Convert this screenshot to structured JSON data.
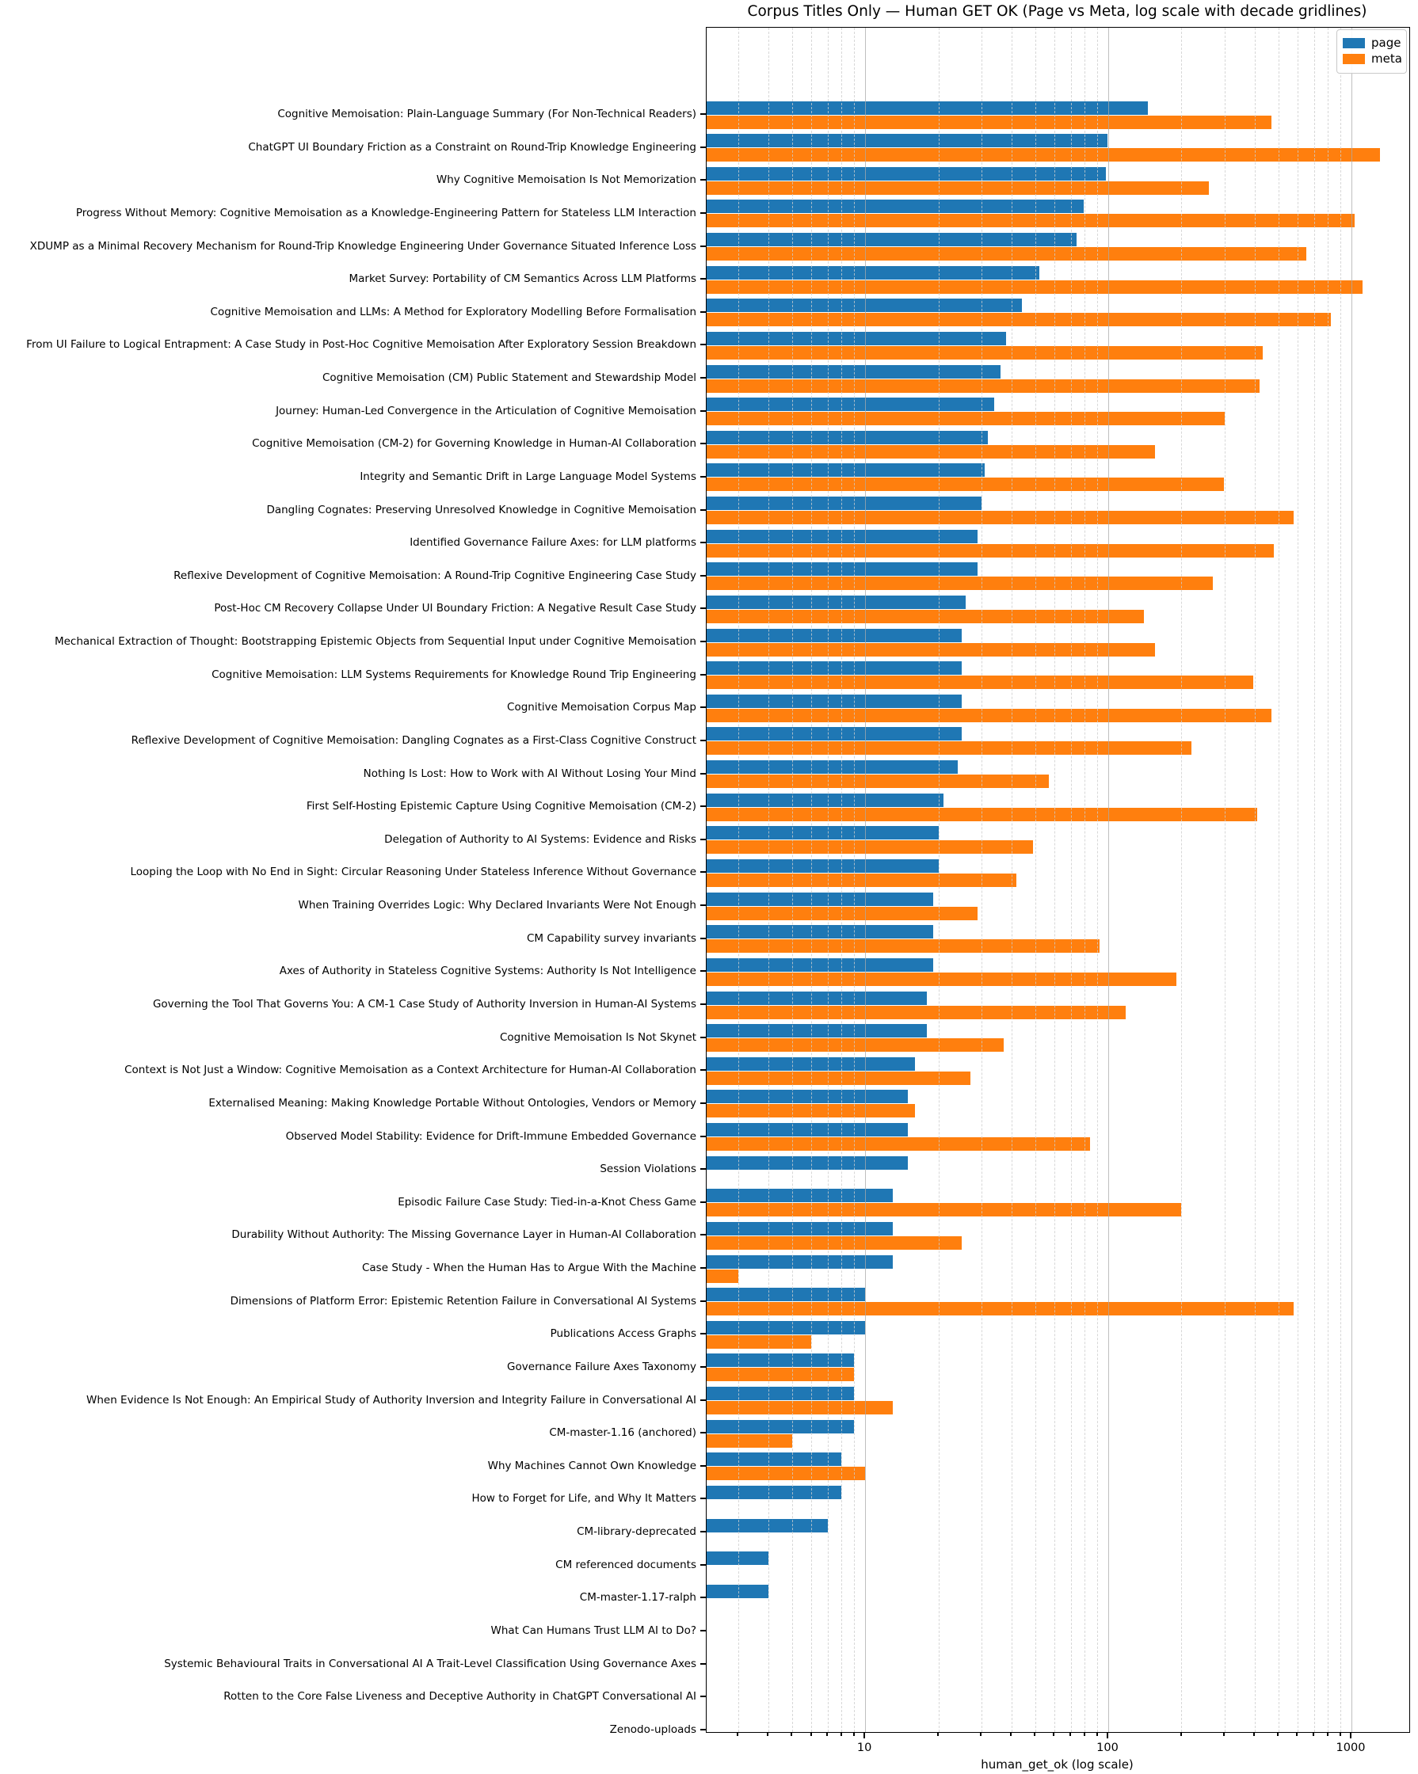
{
  "figure": {
    "title": "Corpus Titles Only — Human GET OK (Page vs Meta, log scale with decade gridlines)",
    "xlabel": "human_get_ok (log scale)"
  },
  "legend": {
    "position": "upper right",
    "entries": [
      {
        "label": "page",
        "color": "#1f77b4"
      },
      {
        "label": "meta",
        "color": "#ff7f0e"
      }
    ]
  },
  "chart_data": {
    "type": "bar",
    "orientation": "horizontal",
    "x_scale": "log",
    "title": "Corpus Titles Only — Human GET OK (Page vs Meta, log scale with decade gridlines)",
    "xlabel": "human_get_ok (log scale)",
    "ylabel": "",
    "xlim": [
      2.23,
      1729
    ],
    "grid": "decade major solid, minor dashed",
    "legend_position": "upper right",
    "xticks": [
      {
        "value": 10,
        "label": "10"
      },
      {
        "value": 100,
        "label": "100"
      },
      {
        "value": 1000,
        "label": "1000"
      }
    ],
    "x_minor_gridlines": [
      3,
      4,
      5,
      6,
      7,
      8,
      9,
      20,
      30,
      40,
      50,
      60,
      70,
      80,
      90,
      200,
      300,
      400,
      500,
      600,
      700,
      800,
      900
    ],
    "categories": [
      "Cognitive Memoisation: Plain-Language Summary (For Non-Technical Readers)",
      "ChatGPT UI Boundary Friction as a Constraint on Round-Trip Knowledge Engineering",
      "Why Cognitive Memoisation Is Not Memorization",
      "Progress Without Memory: Cognitive Memoisation as a Knowledge-Engineering Pattern for Stateless LLM Interaction",
      "XDUMP as a Minimal Recovery Mechanism for Round-Trip Knowledge Engineering Under Governance Situated Inference Loss",
      "Market Survey: Portability of CM Semantics Across LLM Platforms",
      "Cognitive Memoisation and LLMs: A Method for Exploratory Modelling Before Formalisation",
      "From UI Failure to Logical Entrapment: A Case Study in Post-Hoc Cognitive Memoisation After Exploratory Session Breakdown",
      "Cognitive Memoisation (CM) Public Statement and Stewardship Model",
      "Journey: Human-Led Convergence in the Articulation of Cognitive Memoisation",
      "Cognitive Memoisation (CM-2) for Governing Knowledge in Human-AI Collaboration",
      "Integrity and Semantic Drift in Large Language Model Systems",
      "Dangling Cognates: Preserving Unresolved Knowledge in Cognitive Memoisation",
      "Identified Governance Failure Axes: for LLM platforms",
      "Reflexive Development of Cognitive Memoisation: A Round-Trip Cognitive Engineering Case Study",
      "Post-Hoc CM Recovery Collapse Under UI Boundary Friction: A Negative Result Case Study",
      "Mechanical Extraction of Thought: Bootstrapping Epistemic Objects from Sequential Input under Cognitive Memoisation",
      "Cognitive Memoisation: LLM Systems Requirements for Knowledge Round Trip Engineering",
      "Cognitive Memoisation Corpus Map",
      "Reflexive Development of Cognitive Memoisation: Dangling Cognates as a First-Class Cognitive Construct",
      "Nothing Is Lost: How to Work with AI Without Losing Your Mind",
      "First Self-Hosting Epistemic Capture Using Cognitive Memoisation (CM-2)",
      "Delegation of Authority to AI Systems: Evidence and Risks",
      "Looping the Loop with No End in Sight: Circular Reasoning Under Stateless Inference Without Governance",
      "When Training Overrides Logic: Why Declared Invariants Were Not Enough",
      "CM Capability survey invariants",
      "Axes of Authority in Stateless Cognitive Systems: Authority Is Not Intelligence",
      "Governing the Tool That Governs You: A CM-1 Case Study of Authority Inversion in Human-AI Systems",
      "Cognitive Memoisation Is Not Skynet",
      "Context is Not Just a Window: Cognitive Memoisation as a Context Architecture for Human-AI Collaboration",
      "Externalised Meaning: Making Knowledge Portable Without Ontologies, Vendors or Memory",
      "Observed Model Stability: Evidence for Drift-Immune Embedded Governance",
      "Session Violations",
      "Episodic Failure Case Study: Tied-in-a-Knot Chess Game",
      "Durability Without Authority: The Missing Governance Layer in Human-AI Collaboration",
      "Case Study - When the Human Has to Argue With the Machine",
      "Dimensions of Platform Error: Epistemic Retention Failure in Conversational AI Systems",
      "Publications Access Graphs",
      "Governance Failure Axes Taxonomy",
      "When Evidence Is Not Enough: An Empirical Study of Authority Inversion and Integrity Failure in Conversational AI",
      "CM-master-1.16 (anchored)",
      "Why Machines Cannot Own Knowledge",
      "How to Forget for Life, and Why It Matters",
      "CM-library-deprecated",
      "CM referenced documents",
      "CM-master-1.17-ralph",
      "What Can Humans Trust LLM AI to Do?",
      "Systemic Behavioural Traits in Conversational AI A Trait-Level Classification Using Governance Axes",
      "Rotten to the Core False Liveness and Deceptive Authority in ChatGPT Conversational AI",
      "Zenodo-uploads"
    ],
    "series": [
      {
        "name": "page",
        "color": "#1f77b4",
        "values": [
          145,
          99,
          98,
          79,
          74,
          52,
          44,
          38,
          36,
          34,
          32,
          31,
          30,
          29,
          29,
          26,
          25,
          25,
          25,
          25,
          24,
          21,
          20,
          20,
          19,
          19,
          19,
          18,
          18,
          16,
          15,
          15,
          15,
          13,
          13,
          13,
          10,
          10,
          9,
          9,
          9,
          8,
          8,
          7,
          4,
          4,
          0,
          0,
          0,
          0
        ]
      },
      {
        "name": "meta",
        "color": "#ff7f0e",
        "values": [
          470,
          1310,
          260,
          1030,
          650,
          1110,
          820,
          430,
          420,
          300,
          155,
          298,
          580,
          480,
          268,
          140,
          155,
          395,
          470,
          220,
          57,
          410,
          49,
          42,
          29,
          92,
          190,
          118,
          37,
          27,
          16,
          84,
          0,
          200,
          25,
          3,
          580,
          6,
          9,
          13,
          5,
          10,
          0,
          0,
          0,
          0,
          0,
          0,
          0,
          0
        ]
      }
    ]
  }
}
